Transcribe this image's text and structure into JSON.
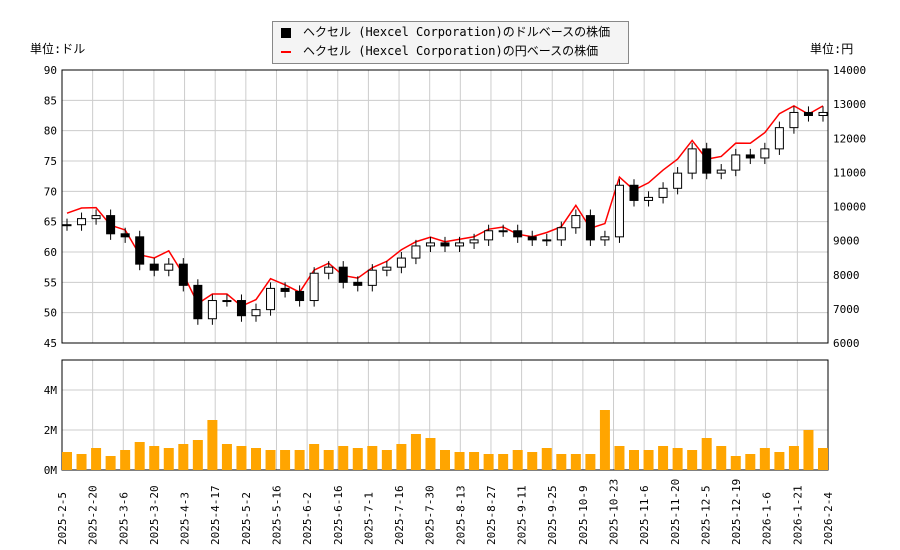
{
  "legend": {
    "usd": "ヘクセル (Hexcel Corporation)のドルベースの株価",
    "jpy": "ヘクセル (Hexcel Corporation)の円ベースの株価"
  },
  "units": {
    "left": "単位:ドル",
    "right": "単位:円"
  },
  "colors": {
    "candle": "#000000",
    "yen_line": "#ff0000",
    "volume": "#ffa500",
    "grid": "#cccccc"
  },
  "chart_data": [
    {
      "type": "candlestick+line",
      "title": "",
      "ylabel_left": "USD",
      "ylabel_right": "JPY",
      "ylim": [
        45,
        90
      ],
      "ylim_right": [
        6000,
        14000
      ],
      "yticks": [
        45,
        50,
        55,
        60,
        65,
        70,
        75,
        80,
        85,
        90
      ],
      "yticks_right": [
        6000,
        7000,
        8000,
        9000,
        10000,
        11000,
        12000,
        13000,
        14000
      ],
      "dates": [
        "2025-2-5",
        "2025-2-12",
        "2025-2-19",
        "2025-2-26",
        "2025-3-5",
        "2025-3-12",
        "2025-3-19",
        "2025-3-26",
        "2025-4-2",
        "2025-4-9",
        "2025-4-16",
        "2025-4-23",
        "2025-4-30",
        "2025-5-7",
        "2025-5-14",
        "2025-5-21",
        "2025-5-28",
        "2025-6-4",
        "2025-6-11",
        "2025-6-18",
        "2025-6-25",
        "2025-7-2",
        "2025-7-9",
        "2025-7-16",
        "2025-7-23",
        "2025-7-30",
        "2025-8-6",
        "2025-8-13",
        "2025-8-20",
        "2025-8-27",
        "2025-9-3",
        "2025-9-10",
        "2025-9-17",
        "2025-9-24",
        "2025-10-1",
        "2025-10-8",
        "2025-10-15",
        "2025-10-22",
        "2025-10-29",
        "2025-11-5",
        "2025-11-12",
        "2025-11-19",
        "2025-11-26",
        "2025-12-3",
        "2025-12-10",
        "2025-12-17",
        "2025-12-24",
        "2025-12-31",
        "2026-1-7",
        "2026-1-14",
        "2026-1-21",
        "2026-1-28",
        "2026-2-4"
      ],
      "close": [
        64.5,
        65.5,
        66,
        63,
        62.5,
        58,
        57,
        58,
        54.5,
        49,
        52,
        52,
        49.5,
        50.5,
        54,
        53.5,
        52,
        56.5,
        57.5,
        55,
        54.5,
        57,
        57.5,
        59,
        61,
        61.5,
        61,
        61.5,
        62,
        63.5,
        63.5,
        62.5,
        62,
        62,
        64,
        66,
        62,
        62.5,
        71,
        68.5,
        69,
        70.5,
        73,
        77,
        73,
        73.5,
        76,
        75.5,
        77,
        80.5,
        83,
        82.5,
        83
      ],
      "yen": [
        9804,
        9956,
        9966,
        9450,
        9313,
        8584,
        8493,
        8700,
        8012,
        7154,
        7436,
        7436,
        7079,
        7272,
        7884,
        7704,
        7488,
        8136,
        8338,
        7975,
        7903,
        8208,
        8395,
        8732,
        8967,
        9102,
        8967,
        9041,
        9114,
        9335,
        9398,
        9188,
        9114,
        9238,
        9408,
        10032,
        9362,
        9500,
        10863,
        10481,
        10695,
        11069,
        11388,
        11935,
        11388,
        11466,
        11856,
        11854,
        12166,
        12719,
        12948,
        12705,
        12948
      ]
    },
    {
      "type": "bar",
      "ylabel": "Volume",
      "yticks": [
        "0M",
        "2M",
        "4M"
      ],
      "ylim": [
        0,
        5.5
      ],
      "volume_millions": [
        0.9,
        0.8,
        1.1,
        0.7,
        1.0,
        1.4,
        1.2,
        1.1,
        1.3,
        1.5,
        2.5,
        1.3,
        1.2,
        1.1,
        1.0,
        1.0,
        1.0,
        1.3,
        1.0,
        1.2,
        1.1,
        1.2,
        1.0,
        1.3,
        1.8,
        1.6,
        1.0,
        0.9,
        0.9,
        0.8,
        0.8,
        1.0,
        0.9,
        1.1,
        0.8,
        0.8,
        0.8,
        3.0,
        1.2,
        1.0,
        1.0,
        1.2,
        1.1,
        1.0,
        1.6,
        1.2,
        0.7,
        0.8,
        1.1,
        0.9,
        1.2,
        2.0,
        1.1
      ],
      "xticks": [
        "2025-2-5",
        "2025-2-20",
        "2025-3-6",
        "2025-3-20",
        "2025-4-3",
        "2025-4-17",
        "2025-5-2",
        "2025-5-16",
        "2025-6-2",
        "2025-6-16",
        "2025-7-1",
        "2025-7-16",
        "2025-7-30",
        "2025-8-13",
        "2025-8-27",
        "2025-9-11",
        "2025-9-25",
        "2025-10-9",
        "2025-10-23",
        "2025-11-6",
        "2025-11-20",
        "2025-12-5",
        "2025-12-19",
        "2026-1-6",
        "2026-1-21",
        "2026-2-4"
      ]
    }
  ]
}
